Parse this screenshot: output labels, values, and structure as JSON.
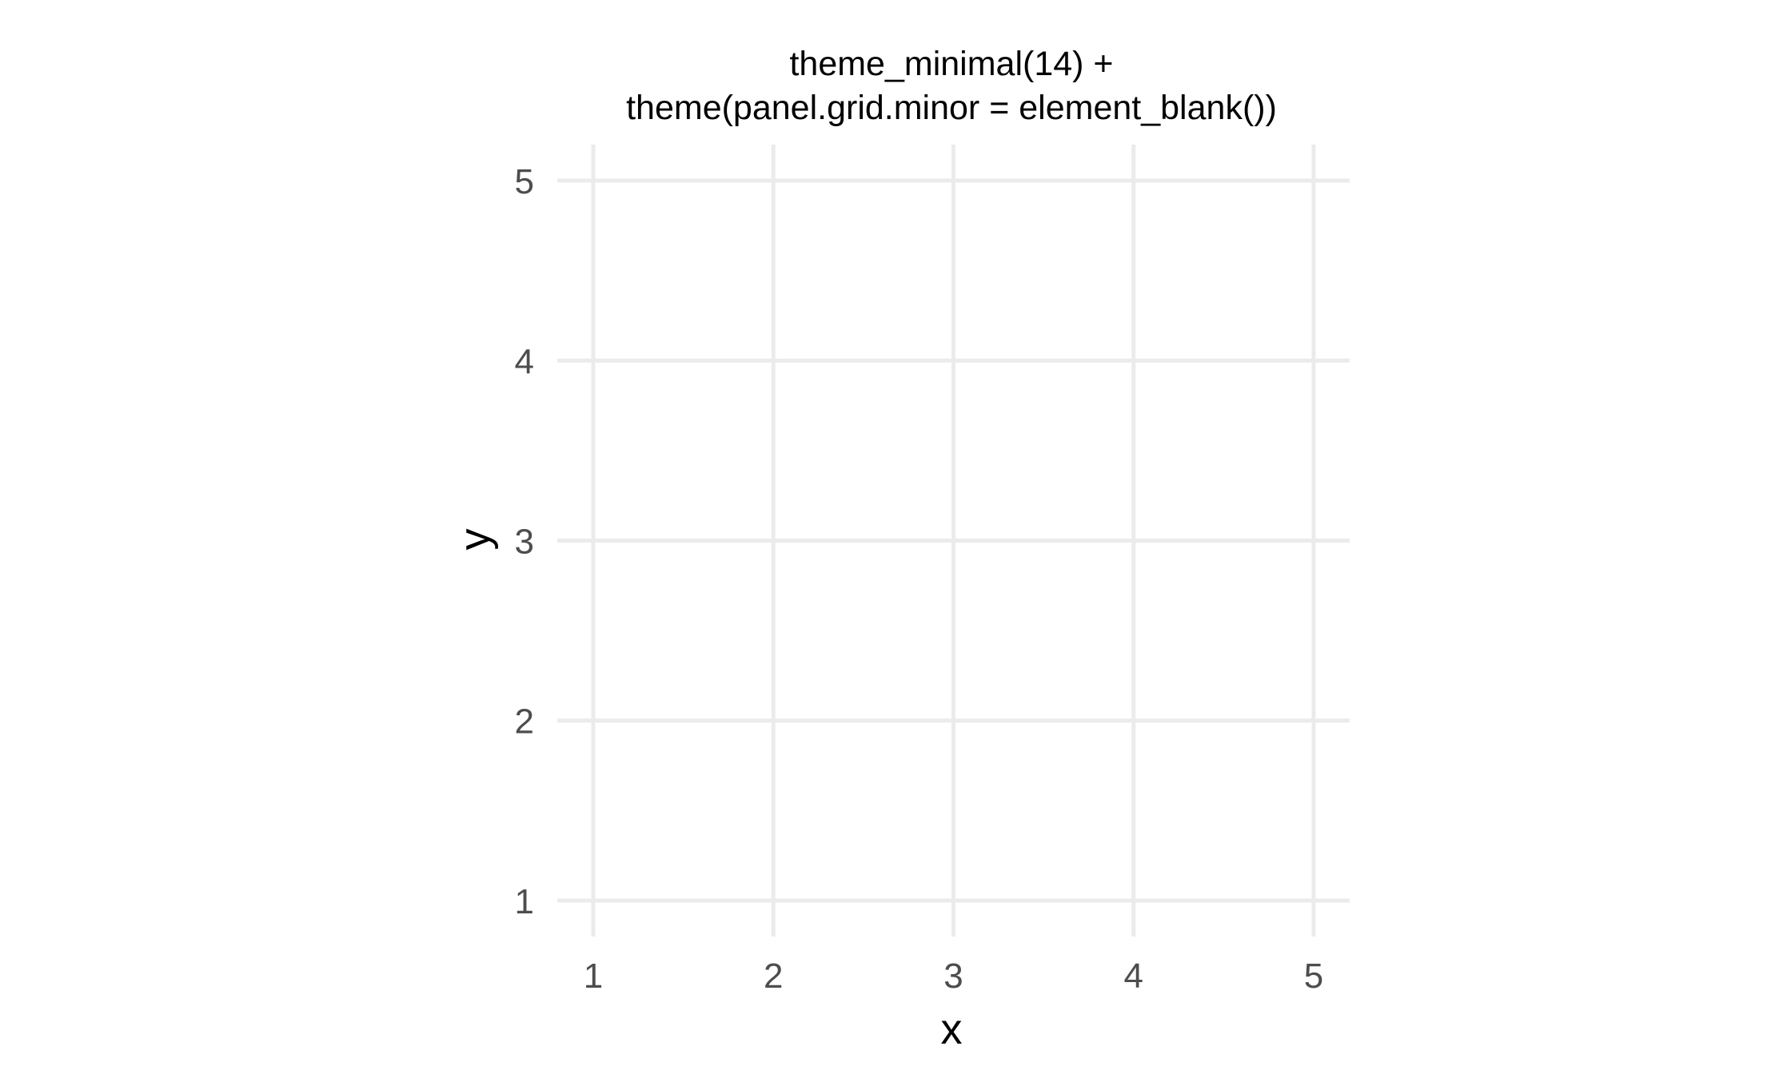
{
  "chart_data": {
    "type": "scatter",
    "title_lines": [
      "theme_minimal(14) +",
      "theme(panel.grid.minor = element_blank())"
    ],
    "xlabel": "x",
    "ylabel": "y",
    "xlim": [
      0.8,
      5.2
    ],
    "ylim": [
      0.8,
      5.2
    ],
    "x_ticks": [
      1,
      2,
      3,
      4,
      5
    ],
    "y_ticks": [
      1,
      2,
      3,
      4,
      5
    ],
    "x": [],
    "y": [],
    "grid_major": true,
    "grid_minor": false,
    "grid_color": "#ebebeb",
    "tick_label_color": "#4d4d4d",
    "text_color": "#000000"
  }
}
